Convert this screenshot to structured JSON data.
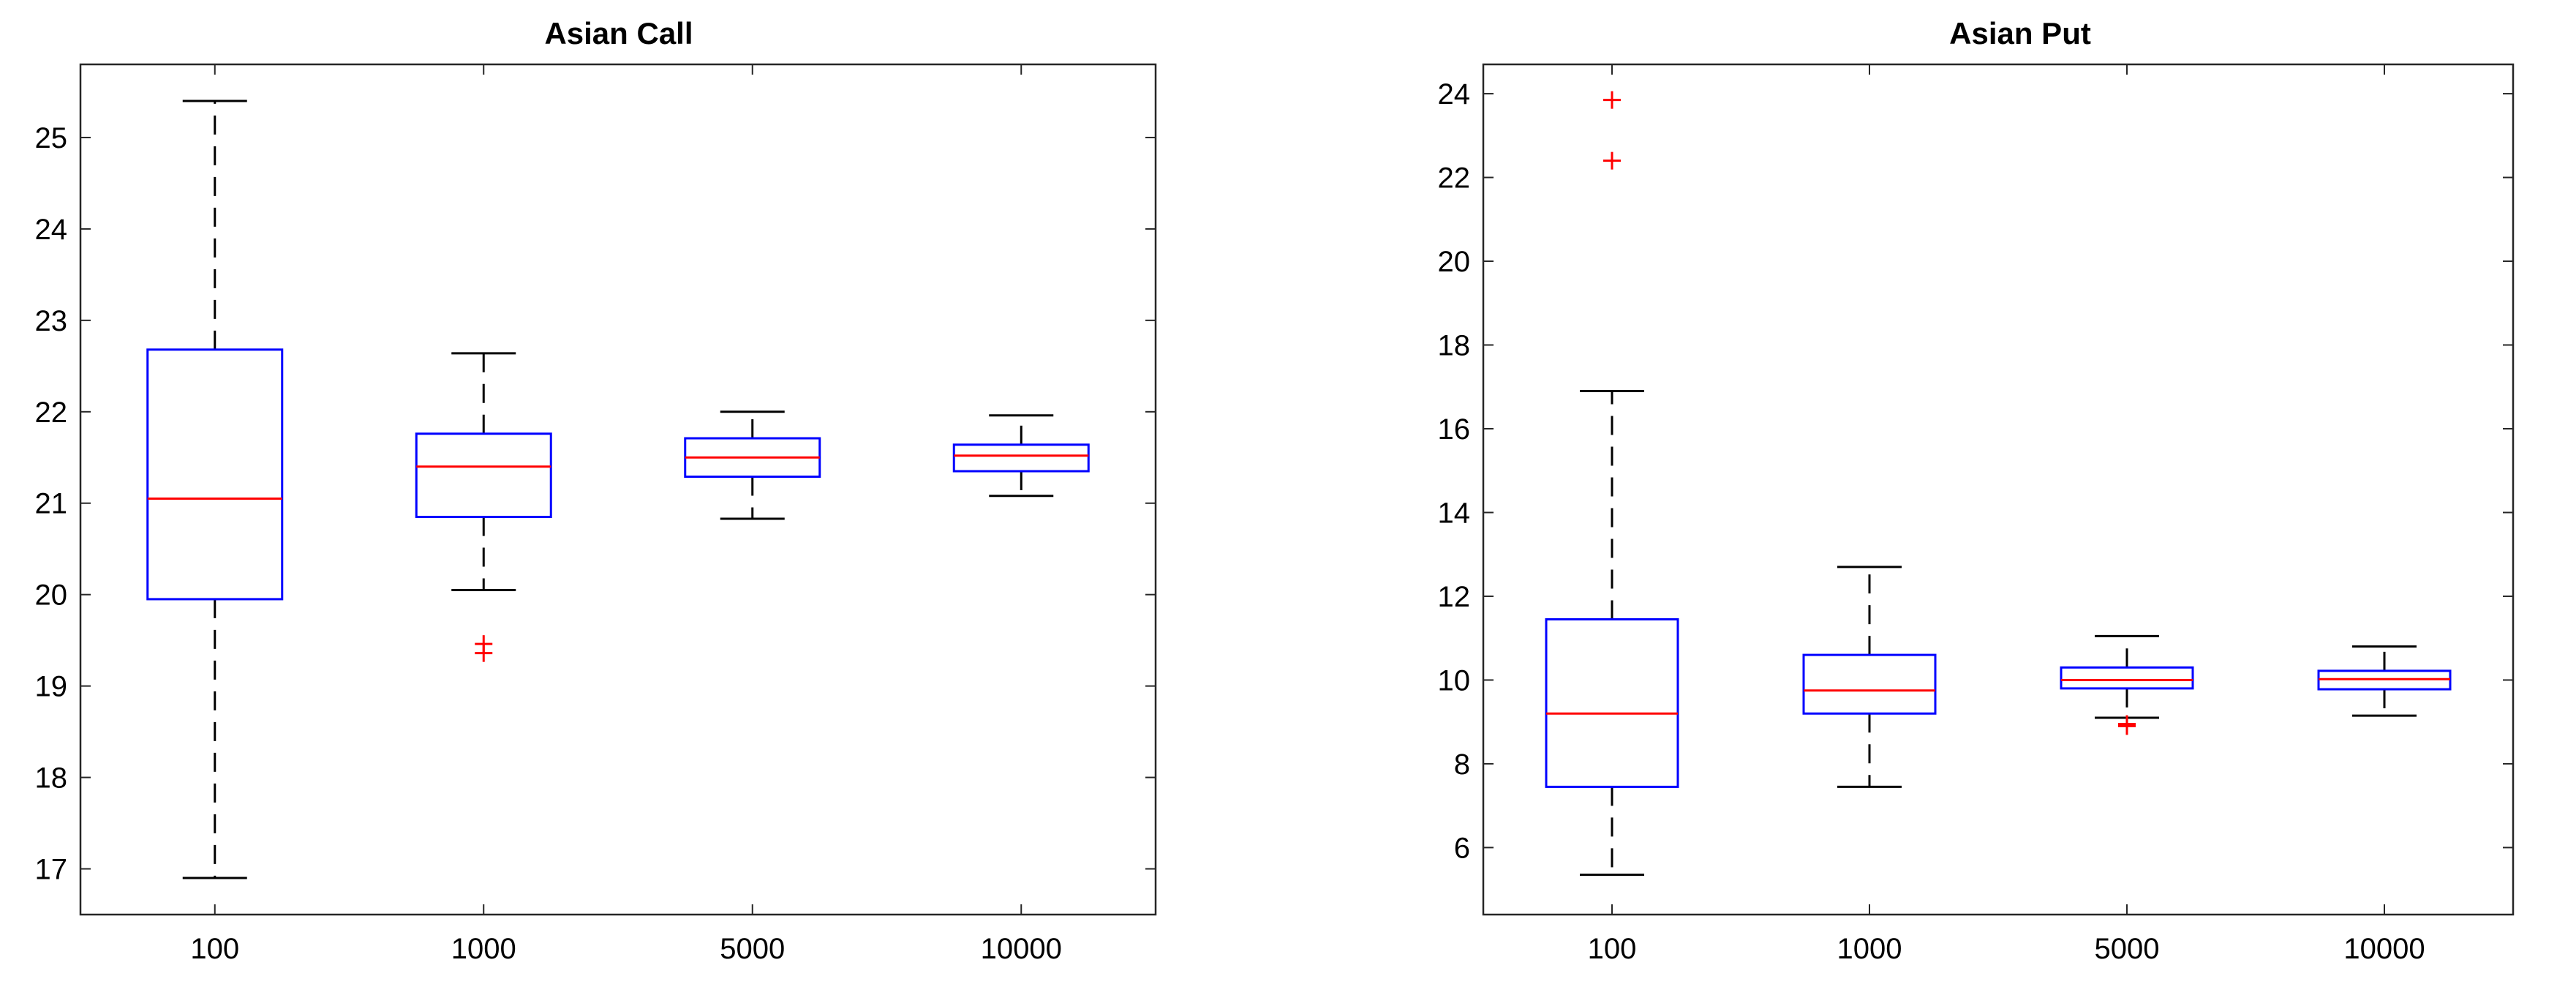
{
  "chart_data": [
    {
      "type": "box",
      "title": "Asian Call",
      "xlabel": "",
      "ylabel": "",
      "categories": [
        "100",
        "1000",
        "5000",
        "10000"
      ],
      "ylim": [
        16.5,
        25.8
      ],
      "yticks": [
        17,
        18,
        19,
        20,
        21,
        22,
        23,
        24,
        25
      ],
      "boxes": [
        {
          "category": "100",
          "whisker_low": 16.9,
          "q1": 19.95,
          "median": 21.05,
          "q3": 22.68,
          "whisker_high": 25.4,
          "outliers": []
        },
        {
          "category": "1000",
          "whisker_low": 20.05,
          "q1": 20.85,
          "median": 21.4,
          "q3": 21.76,
          "whisker_high": 22.64,
          "outliers": [
            19.46,
            19.36
          ]
        },
        {
          "category": "5000",
          "whisker_low": 20.83,
          "q1": 21.29,
          "median": 21.5,
          "q3": 21.71,
          "whisker_high": 22.0,
          "outliers": []
        },
        {
          "category": "10000",
          "whisker_low": 21.08,
          "q1": 21.35,
          "median": 21.52,
          "q3": 21.64,
          "whisker_high": 21.96,
          "outliers": []
        }
      ],
      "grid": false,
      "colors": {
        "box": "#0000ff",
        "median": "#ff0000",
        "whisker": "#000000",
        "outlier": "#ff0000",
        "axes": "#262626"
      }
    },
    {
      "type": "box",
      "title": "Asian Put",
      "xlabel": "",
      "ylabel": "",
      "categories": [
        "100",
        "1000",
        "5000",
        "10000"
      ],
      "ylim": [
        4.4,
        24.7
      ],
      "yticks": [
        6,
        8,
        10,
        12,
        14,
        16,
        18,
        20,
        22,
        24
      ],
      "boxes": [
        {
          "category": "100",
          "whisker_low": 5.35,
          "q1": 7.45,
          "median": 9.2,
          "q3": 11.45,
          "whisker_high": 16.9,
          "outliers": [
            23.85,
            22.4
          ]
        },
        {
          "category": "1000",
          "whisker_low": 7.45,
          "q1": 9.2,
          "median": 9.75,
          "q3": 10.6,
          "whisker_high": 12.7,
          "outliers": []
        },
        {
          "category": "5000",
          "whisker_low": 9.1,
          "q1": 9.8,
          "median": 10.0,
          "q3": 10.3,
          "whisker_high": 11.05,
          "outliers": [
            8.95,
            8.9
          ]
        },
        {
          "category": "10000",
          "whisker_low": 9.15,
          "q1": 9.78,
          "median": 10.02,
          "q3": 10.22,
          "whisker_high": 10.8,
          "outliers": []
        }
      ],
      "grid": false,
      "colors": {
        "box": "#0000ff",
        "median": "#ff0000",
        "whisker": "#000000",
        "outlier": "#ff0000",
        "axes": "#262626"
      }
    }
  ]
}
